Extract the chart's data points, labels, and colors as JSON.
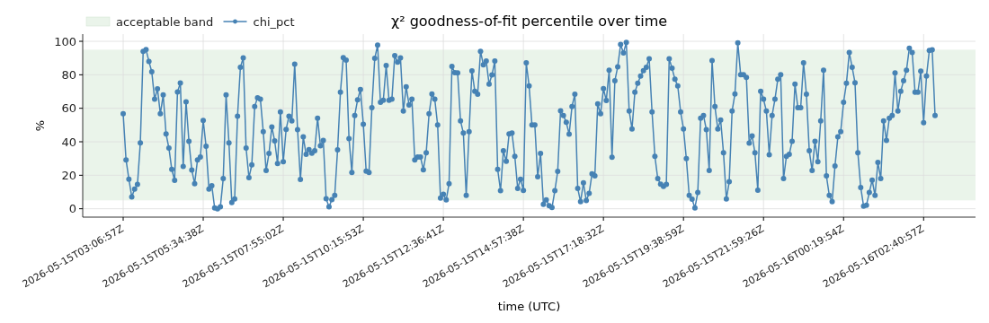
{
  "chart_data": {
    "type": "line",
    "title": "χ² goodness-of-fit percentile over time",
    "xlabel": "time (UTC)",
    "ylabel": "%",
    "categories": [
      "2026-05-15T03:06:57Z",
      null,
      null,
      null,
      null,
      null,
      null,
      null,
      null,
      null,
      null,
      null,
      null,
      null,
      null,
      null,
      null,
      null,
      null,
      null,
      null,
      null,
      null,
      null,
      null,
      null,
      null,
      null,
      "2026-05-15T05:34:38Z",
      null,
      null,
      null,
      null,
      null,
      null,
      null,
      null,
      null,
      null,
      null,
      null,
      null,
      null,
      null,
      null,
      null,
      null,
      null,
      null,
      null,
      null,
      null,
      null,
      null,
      null,
      null,
      "2026-05-15T07:55:02Z",
      null,
      null,
      null,
      null,
      null,
      null,
      null,
      null,
      null,
      null,
      null,
      null,
      null,
      null,
      null,
      null,
      null,
      null,
      null,
      null,
      null,
      null,
      null,
      null,
      null,
      null,
      null,
      "2026-05-15T10:15:53Z",
      null,
      null,
      null,
      null,
      null,
      null,
      null,
      null,
      null,
      null,
      null,
      null,
      null,
      null,
      null,
      null,
      null,
      null,
      null,
      null,
      null,
      null,
      null,
      null,
      null,
      null,
      null,
      "2026-05-15T12:36:41Z",
      null,
      null,
      null,
      null,
      null,
      null,
      null,
      null,
      null,
      null,
      null,
      null,
      null,
      null,
      null,
      null,
      null,
      null,
      null,
      null,
      null,
      null,
      null,
      null,
      null,
      null,
      null,
      "2026-05-15T14:57:38Z",
      null,
      null,
      null,
      null,
      null,
      null,
      null,
      null,
      null,
      null,
      null,
      null,
      null,
      null,
      null,
      null,
      null,
      null,
      null,
      null,
      null,
      null,
      null,
      null,
      null,
      null,
      null,
      "2026-05-15T17:18:32Z",
      null,
      null,
      null,
      null,
      null,
      null,
      null,
      null,
      null,
      null,
      null,
      null,
      null,
      null,
      null,
      null,
      null,
      null,
      null,
      null,
      null,
      null,
      null,
      null,
      null,
      null,
      null,
      "2026-05-15T19:38:59Z",
      null,
      null,
      null,
      null,
      null,
      null,
      null,
      null,
      null,
      null,
      null,
      null,
      null,
      null,
      null,
      null,
      null,
      null,
      null,
      null,
      null,
      null,
      null,
      null,
      null,
      null,
      null,
      "2026-05-15T21:59:26Z",
      null,
      null,
      null,
      null,
      null,
      null,
      null,
      null,
      null,
      null,
      null,
      null,
      null,
      null,
      null,
      null,
      null,
      null,
      null,
      null,
      null,
      null,
      null,
      null,
      null,
      null,
      null,
      "2026-05-16T00:19:54Z",
      null,
      null,
      null,
      null,
      null,
      null,
      null,
      null,
      null,
      null,
      null,
      null,
      null,
      null,
      null,
      null,
      null,
      null,
      null,
      null,
      null,
      null,
      null,
      null,
      null,
      null,
      null,
      "2026-05-16T02:40:57Z",
      null,
      null,
      null,
      null
    ],
    "series": [
      {
        "name": "chi_pct",
        "color": "#4682b4",
        "values": [
          56.7,
          29.2,
          17.7,
          7.1,
          11.7,
          14.5,
          39.4,
          94,
          95,
          88,
          81.8,
          65.4,
          71.6,
          56.7,
          68,
          44.7,
          36.2,
          23.5,
          17,
          69.8,
          75.1,
          25.3,
          63.8,
          40.3,
          23.1,
          15,
          29.2,
          30.9,
          52.7,
          37.3,
          11.7,
          13.8,
          0.5,
          0,
          1.1,
          18,
          68,
          39.4,
          3.7,
          5.8,
          55.3,
          84.5,
          90.1,
          36.2,
          18.6,
          26.2,
          61.1,
          66.3,
          65.4,
          46.1,
          22.8,
          33,
          48.9,
          40.5,
          27,
          57.8,
          28.1,
          47.4,
          55.3,
          52.5,
          86.4,
          47.2,
          17.5,
          42.9,
          32.5,
          35.3,
          33.2,
          34.6,
          54.1,
          37.6,
          40.8,
          6,
          1.1,
          5.5,
          8,
          35.2,
          69.6,
          90.3,
          88.7,
          41.9,
          21.7,
          55.7,
          65,
          71.2,
          50.5,
          22.4,
          21.7,
          60.4,
          89.8,
          97.7,
          63.6,
          64.8,
          85.5,
          64.8,
          65.4,
          91.4,
          87.5,
          90.1,
          58.3,
          72.8,
          62,
          65.4,
          29.2,
          30.9,
          30.9,
          23.3,
          33.4,
          56.7,
          68.6,
          65.4,
          50,
          6.4,
          8.7,
          5.3,
          15,
          85,
          81.3,
          81.1,
          52.5,
          45.2,
          8,
          46.1,
          82.3,
          70.2,
          68.4,
          94,
          85.9,
          88.2,
          74.4,
          79.9,
          88.2,
          23.5,
          10.8,
          34.6,
          28.3,
          44.7,
          45.2,
          31.3,
          12.2,
          17.7,
          11,
          87.1,
          73.3,
          50,
          50,
          19.1,
          33,
          2.7,
          5.3,
          1.8,
          0.7,
          10.8,
          22.3,
          58.5,
          55.7,
          51.6,
          44.5,
          61.1,
          68.4,
          12.2,
          4.2,
          15.5,
          4.9,
          9.2,
          20.9,
          19.6,
          62.7,
          56.7,
          71.7,
          64.7,
          82.7,
          30.7,
          76.5,
          84.8,
          98.1,
          93.1,
          99.3,
          58.3,
          47.7,
          69.6,
          74.9,
          79.2,
          82.5,
          84.5,
          89.6,
          57.8,
          31.3,
          18,
          14.7,
          13.3,
          14.5,
          89.6,
          83.9,
          77.4,
          73.3,
          57.8,
          47.7,
          29.9,
          8,
          5.7,
          0.5,
          9.7,
          54.1,
          55.7,
          47.2,
          22.8,
          88.5,
          61,
          47.7,
          53,
          33.4,
          5.8,
          16.1,
          58.3,
          68.6,
          99.1,
          80,
          80,
          78.5,
          39.2,
          43.5,
          33.4,
          11.1,
          70.2,
          65.4,
          58.3,
          32.3,
          55.7,
          65.4,
          77.4,
          80,
          18,
          31.3,
          32.5,
          40.3,
          74.4,
          60.4,
          60.4,
          87.1,
          68.4,
          34.6,
          22.8,
          40.3,
          28.1,
          52.5,
          82.7,
          19.6,
          8,
          4.2,
          25.6,
          42.9,
          46.1,
          63.6,
          74.9,
          93.3,
          84.5,
          75.3,
          33.4,
          12.7,
          1.6,
          2.1,
          9.7,
          17.1,
          8,
          27.7,
          18,
          52.5,
          40.8,
          54.1,
          55.7,
          81.1,
          58.3,
          70.2,
          76.5,
          82.7,
          95.9,
          93.3,
          69.6,
          69.6,
          82.2,
          51.4,
          79.2,
          94.5,
          94.9,
          55.7
        ]
      }
    ],
    "ylim": [
      -5,
      104.3
    ],
    "yticks": [
      0,
      20,
      40,
      60,
      80,
      100
    ],
    "bands": [
      {
        "axis": "y",
        "from": 5,
        "to": 95,
        "label": "acceptable band",
        "color": "#eaf4ea"
      }
    ],
    "grid": true,
    "legend": "top left",
    "marker": "circle",
    "line_style": "solid"
  }
}
